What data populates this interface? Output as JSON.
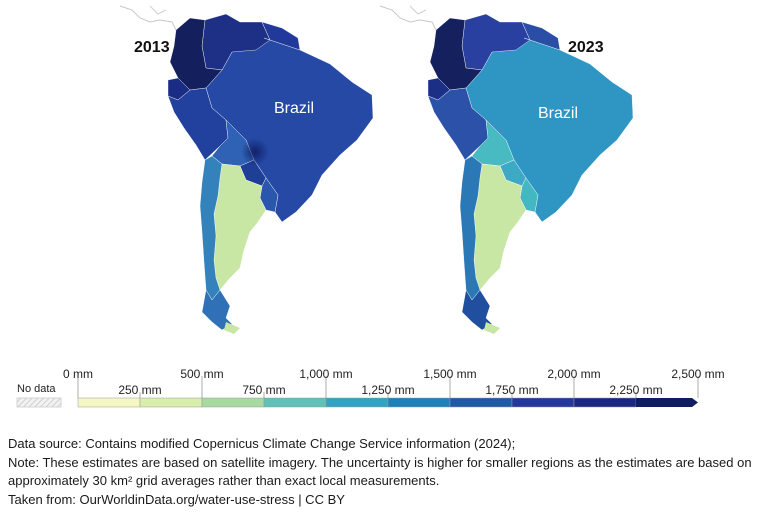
{
  "maps": [
    {
      "year": "2013",
      "country_label": "Brazil",
      "regions": {
        "colombia": "#141f5e",
        "venezuela": "#1e2f86",
        "guyanas": "#21399a",
        "ecuador": "#1a2c84",
        "peru": "#22419f",
        "brazil": "#2549a5",
        "bolivia": "#2f62b5",
        "paraguay": "#1f3f96",
        "uruguay": "#2b56ad",
        "argentina": "#c8e7a5",
        "chile": "#3482bb",
        "chile_south": "#2f70b6"
      }
    },
    {
      "year": "2023",
      "country_label": "Brazil",
      "regions": {
        "colombia": "#15215f",
        "venezuela": "#2a40a0",
        "guyanas": "#2a4ea6",
        "ecuador": "#1c2f86",
        "peru": "#2b51a8",
        "brazil": "#2f96c4",
        "bolivia": "#48bbc2",
        "paraguay": "#3da9c4",
        "uruguay": "#43b8c2",
        "argentina": "#c8e7a5",
        "chile": "#2b78b6",
        "chile_south": "#1f4f9e"
      }
    }
  ],
  "legend": {
    "no_data_label": "No data",
    "upper_labels": [
      "0 mm",
      "500 mm",
      "1,000 mm",
      "1,500 mm",
      "2,000 mm",
      "2,500 mm"
    ],
    "lower_labels": [
      "250 mm",
      "750 mm",
      "1,250 mm",
      "1,750 mm",
      "2,250 mm"
    ],
    "colors": [
      "#f6f8c4",
      "#d8eeab",
      "#a8d9a0",
      "#63c0b8",
      "#33a3c4",
      "#1f80ba",
      "#1f5aa6",
      "#23389a",
      "#1a2883",
      "#0f1d63"
    ]
  },
  "notes": {
    "source": "Data source: Contains modified Copernicus Climate Change Service information (2024);",
    "note": "Note: These estimates are based on satellite imagery. The uncertainty is higher for smaller regions as the estimates are based on approximately 30 km² grid averages rather than exact local measurements.",
    "credit": "Taken from: OurWorldinData.org/water-use-stress | CC BY"
  }
}
